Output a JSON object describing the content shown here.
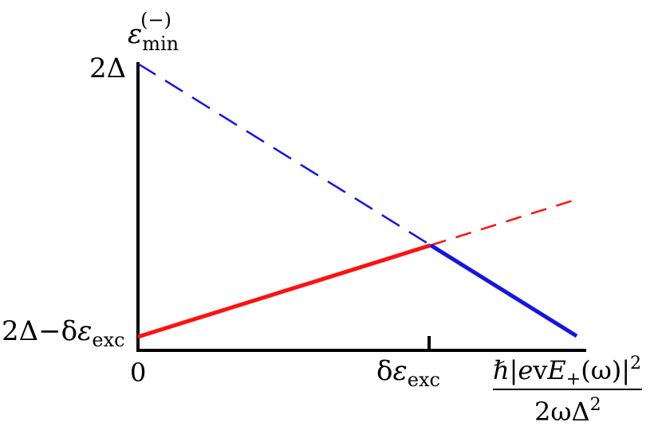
{
  "diagram": {
    "y_axis_label": {
      "main": "ε",
      "sub": "min",
      "sup": "(−)"
    },
    "y_ticks": {
      "top": "2Δ",
      "bottom": {
        "prefix": "2Δ−δ",
        "eps": "ε",
        "sub": "exc"
      }
    },
    "x_ticks": {
      "origin": "0",
      "marked": {
        "delta": "δ",
        "eps": "ε",
        "sub": "exc"
      }
    },
    "x_axis_label": {
      "numerator": {
        "hbar": "ℏ",
        "bar_open": "|",
        "e": "e",
        "v": "v",
        "E": "E",
        "plus": "+",
        "omega_paren": "(ω)",
        "bar_close": "|",
        "exp": "2"
      },
      "denominator": {
        "main": "2ωΔ",
        "exp": "2"
      }
    },
    "colors": {
      "blue_line": "#1414e6",
      "red_line": "#ff1010",
      "axis": "#000000"
    }
  }
}
